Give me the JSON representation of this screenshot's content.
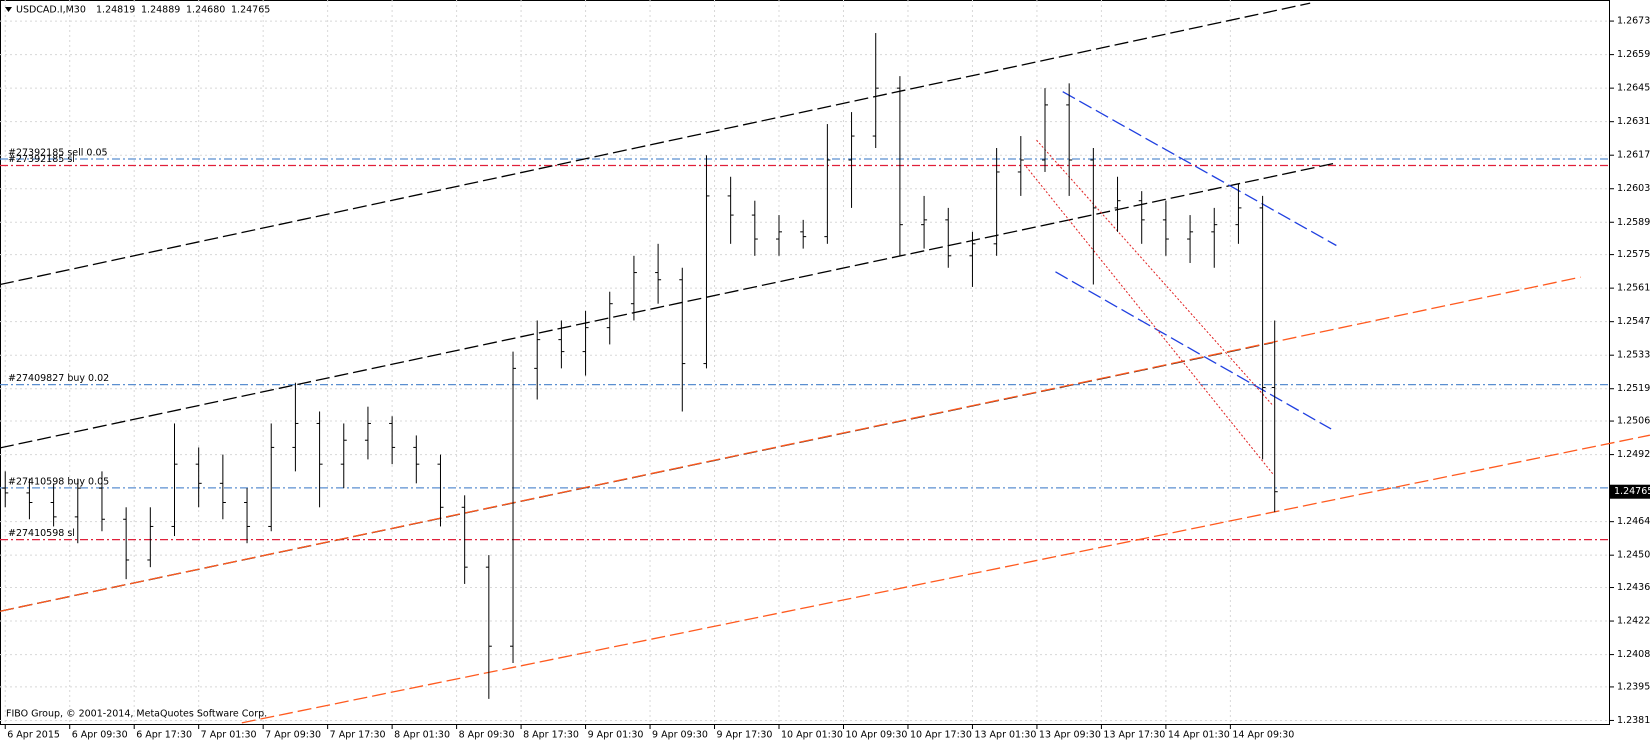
{
  "header": {
    "symbol": "USDCAD.I,M30",
    "open": "1.24819",
    "high": "1.24889",
    "low": "1.24680",
    "close": "1.24765"
  },
  "footer": "FIBO Group, © 2001-2014, MetaQuotes Software Corp.",
  "chart_data": {
    "type": "ohlc",
    "color": "#000000",
    "grid": true,
    "xlim": [
      -1.3,
      398.2
    ],
    "ylim": [
      1.23791,
      1.26818
    ],
    "xticks": [
      {
        "value": 0,
        "label": "6 Apr 2015"
      },
      {
        "value": 16,
        "label": "6 Apr 09:30"
      },
      {
        "value": 32,
        "label": "6 Apr 17:30"
      },
      {
        "value": 48,
        "label": "7 Apr 01:30"
      },
      {
        "value": 64,
        "label": "7 Apr 09:30"
      },
      {
        "value": 80,
        "label": "7 Apr 17:30"
      },
      {
        "value": 96,
        "label": "8 Apr 01:30"
      },
      {
        "value": 112,
        "label": "8 Apr 09:30"
      },
      {
        "value": 128,
        "label": "8 Apr 17:30"
      },
      {
        "value": 144,
        "label": "9 Apr 01:30"
      },
      {
        "value": 160,
        "label": "9 Apr 09:30"
      },
      {
        "value": 176,
        "label": "9 Apr 17:30"
      },
      {
        "value": 192,
        "label": "10 Apr 01:30"
      },
      {
        "value": 208,
        "label": "10 Apr 09:30"
      },
      {
        "value": 224,
        "label": "10 Apr 17:30"
      },
      {
        "value": 240,
        "label": "13 Apr 01:30"
      },
      {
        "value": 256,
        "label": "13 Apr 09:30"
      },
      {
        "value": 272,
        "label": "13 Apr 17:30"
      },
      {
        "value": 288,
        "label": "14 Apr 01:30"
      },
      {
        "value": 304,
        "label": "14 Apr 09:30"
      }
    ],
    "yticks": [
      {
        "value": 1.2673,
        "label": "1.26730"
      },
      1.2659,
      {
        "value": 1.2645,
        "label": "1.26450"
      },
      1.2631,
      {
        "value": 1.2617,
        "label": "1.26170"
      },
      {
        "value": 1.2603,
        "label": "1.26030"
      },
      {
        "value": 1.2589,
        "label": "1.25890"
      },
      1.25755,
      1.25615,
      1.25475,
      1.25335,
      1.25195,
      {
        "value": 1.2506,
        "label": "1.25060"
      },
      {
        "value": 1.2492,
        "label": "1.24920"
      },
      {
        "value": 1.2464,
        "label": "1.24640"
      },
      {
        "value": 1.245,
        "label": "1.24500"
      },
      1.24365,
      1.24225,
      1.24085,
      {
        "value": 1.2395,
        "label": "1.23950"
      },
      {
        "value": 1.2381,
        "label": "1.23810"
      }
    ],
    "current_price": 1.24765,
    "x": [
      0,
      6,
      12,
      18,
      24,
      30,
      36,
      42,
      48,
      54,
      60,
      66,
      72,
      78,
      84,
      90,
      96,
      102,
      108,
      114,
      120,
      126,
      132,
      138,
      144,
      150,
      156,
      162,
      168,
      174,
      180,
      186,
      192,
      198,
      204,
      210,
      216,
      222,
      228,
      234,
      240,
      246,
      252,
      258,
      264,
      270,
      276,
      282,
      288,
      294,
      300,
      306,
      312,
      315
    ],
    "open": [
      1.2478,
      1.2476,
      1.2472,
      1.2466,
      1.2478,
      1.2465,
      1.2448,
      1.2462,
      1.2488,
      1.248,
      1.2472,
      1.2462,
      1.2495,
      1.2505,
      1.2488,
      1.2498,
      1.2505,
      1.2495,
      1.2488,
      1.247,
      1.2445,
      1.2412,
      1.2528,
      1.254,
      1.2535,
      1.2545,
      1.2555,
      1.2568,
      1.2565,
      1.253,
      1.26,
      1.2592,
      1.2582,
      1.2585,
      1.2583,
      1.2615,
      1.2625,
      1.2645,
      1.2588,
      1.259,
      1.2575,
      1.258,
      1.261,
      1.2615,
      1.2638,
      1.2615,
      1.2595,
      1.2598,
      1.259,
      1.2582,
      1.2585,
      1.2588,
      1.2595,
      1.252
    ],
    "high": [
      1.2485,
      1.2482,
      1.248,
      1.2482,
      1.2485,
      1.247,
      1.247,
      1.2505,
      1.2495,
      1.2492,
      1.2478,
      1.2505,
      1.2522,
      1.251,
      1.2505,
      1.2512,
      1.2508,
      1.25,
      1.2492,
      1.2475,
      1.245,
      1.2535,
      1.2548,
      1.2548,
      1.2552,
      1.256,
      1.2575,
      1.258,
      1.257,
      1.2617,
      1.2608,
      1.2598,
      1.2592,
      1.259,
      1.263,
      1.2635,
      1.2668,
      1.265,
      1.26,
      1.2595,
      1.2585,
      1.262,
      1.2625,
      1.2645,
      1.2647,
      1.262,
      1.2608,
      1.2602,
      1.2598,
      1.2592,
      1.2595,
      1.2605,
      1.26,
      1.2548
    ],
    "low": [
      1.247,
      1.2465,
      1.2462,
      1.2455,
      1.246,
      1.244,
      1.2445,
      1.2458,
      1.247,
      1.2465,
      1.2455,
      1.246,
      1.2485,
      1.247,
      1.2478,
      1.249,
      1.2488,
      1.248,
      1.2462,
      1.2438,
      1.239,
      1.2405,
      1.2515,
      1.2528,
      1.2525,
      1.2538,
      1.2548,
      1.2555,
      1.251,
      1.2528,
      1.258,
      1.2575,
      1.2575,
      1.2578,
      1.258,
      1.2595,
      1.262,
      1.2575,
      1.2578,
      1.257,
      1.2562,
      1.2575,
      1.26,
      1.261,
      1.26,
      1.2563,
      1.2585,
      1.258,
      1.2575,
      1.2572,
      1.257,
      1.258,
      1.249,
      1.2468
    ],
    "close": [
      1.2476,
      1.2472,
      1.2466,
      1.2478,
      1.2465,
      1.2448,
      1.2462,
      1.2488,
      1.248,
      1.2472,
      1.2462,
      1.2495,
      1.2505,
      1.2488,
      1.2498,
      1.2505,
      1.2495,
      1.2488,
      1.247,
      1.2445,
      1.2412,
      1.2528,
      1.254,
      1.2535,
      1.2545,
      1.2555,
      1.2568,
      1.2565,
      1.253,
      1.26,
      1.2592,
      1.2582,
      1.2585,
      1.2583,
      1.2615,
      1.2625,
      1.2645,
      1.2588,
      1.259,
      1.2575,
      1.258,
      1.261,
      1.2615,
      1.2638,
      1.2615,
      1.2595,
      1.2598,
      1.259,
      1.2582,
      1.2585,
      1.2588,
      1.2595,
      1.252,
      1.24765
    ],
    "levels": [
      {
        "name": "#27392185 sell 0.05",
        "price": 1.26154,
        "color": "#5b8fd0"
      },
      {
        "name": "#27392185 sl",
        "price": 1.26127,
        "color": "#e0203a"
      },
      {
        "name": "#27409827 buy 0.02",
        "price": 1.25212,
        "color": "#5b8fd0"
      },
      {
        "name": "#27410598 buy 0.05",
        "price": 1.24781,
        "color": "#5b8fd0"
      },
      {
        "name": "#27410598 sl",
        "price": 1.24565,
        "color": "#e0203a"
      }
    ],
    "lines": [
      {
        "color": "#000000",
        "x": [
          -1.3,
          323.8
        ],
        "y": [
          1.2563,
          1.26805
        ]
      },
      {
        "color": "#000000",
        "x": [
          -1.3,
          329.8
        ],
        "y": [
          1.24948,
          1.26136
        ]
      },
      {
        "color": "#000000",
        "x": [
          -1.3,
          314.6
        ],
        "y": [
          1.24266,
          1.25388
        ]
      },
      {
        "color": "#ff5a1f",
        "x": [
          -1.3,
          390.9
        ],
        "y": [
          1.24266,
          1.25661
        ]
      },
      {
        "color": "#ff5a1f",
        "x": [
          58.7,
          408.1
        ],
        "y": [
          1.238,
          1.25001
        ]
      },
      {
        "color": "#2040e0",
        "x": [
          262.4,
          330.3
        ],
        "y": [
          1.26435,
          1.25793
        ]
      },
      {
        "color": "#2040e0",
        "x": [
          260.6,
          329
        ],
        "y": [
          1.25683,
          1.25027
        ]
      },
      {
        "color": "#e02020",
        "x": [
          255.9,
          314.6
        ],
        "y": [
          1.26233,
          1.25124
        ]
      },
      {
        "color": "#e02020",
        "x": [
          253.3,
          314.6
        ],
        "y": [
          1.26123,
          1.24838
        ]
      }
    ]
  }
}
